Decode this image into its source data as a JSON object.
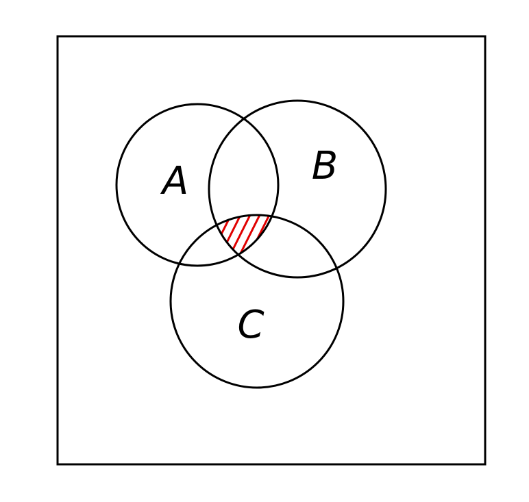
{
  "diagram": {
    "type": "venn",
    "sets": [
      {
        "id": "a",
        "label": "A"
      },
      {
        "id": "b",
        "label": "B"
      },
      {
        "id": "c",
        "label": "C"
      }
    ],
    "shaded_region": {
      "sets": [
        "A",
        "B",
        "C"
      ],
      "pattern": "hatch",
      "color": "#e00000"
    },
    "line_color": "#000000",
    "background_color": "#ffffff"
  }
}
